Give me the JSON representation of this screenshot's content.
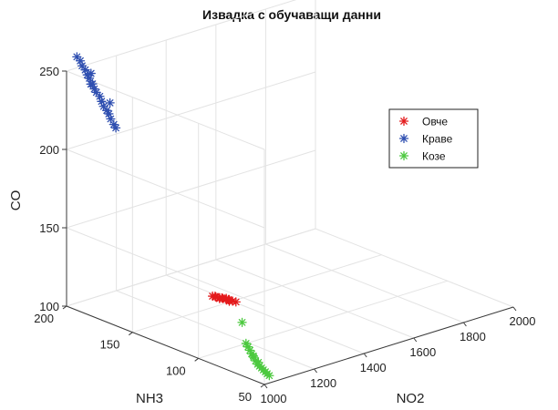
{
  "chart_data": {
    "type": "scatter",
    "projection": "3d",
    "title": "Извадка с обучаващи данни",
    "xlabel": "NO2",
    "ylabel": "NH3",
    "zlabel": "CO",
    "xlim": [
      1000,
      2000
    ],
    "ylim": [
      50,
      200
    ],
    "zlim": [
      100,
      250
    ],
    "xticks": [
      "1000",
      "1200",
      "1400",
      "1600",
      "1800",
      "2000"
    ],
    "yticks": [
      "50",
      "100",
      "150",
      "200"
    ],
    "zticks": [
      "100",
      "150",
      "200",
      "250"
    ],
    "grid": true,
    "legend_position": "inside-right",
    "marker": "asterisk",
    "series": [
      {
        "name": "Овче",
        "color": "#e41a1c",
        "points": [
          {
            "x": 1385,
            "y": 162,
            "z": 100
          },
          {
            "x": 1388,
            "y": 160,
            "z": 100
          },
          {
            "x": 1392,
            "y": 158,
            "z": 100
          },
          {
            "x": 1395,
            "y": 156,
            "z": 100
          },
          {
            "x": 1398,
            "y": 154,
            "z": 100
          },
          {
            "x": 1400,
            "y": 152,
            "z": 100
          },
          {
            "x": 1402,
            "y": 150,
            "z": 100
          },
          {
            "x": 1405,
            "y": 148,
            "z": 100
          },
          {
            "x": 1390,
            "y": 161,
            "z": 100
          },
          {
            "x": 1396,
            "y": 157,
            "z": 100
          },
          {
            "x": 1401,
            "y": 153,
            "z": 100
          },
          {
            "x": 1387,
            "y": 157,
            "z": 100
          },
          {
            "x": 1403,
            "y": 155,
            "z": 100
          },
          {
            "x": 1394,
            "y": 151,
            "z": 100
          }
        ]
      },
      {
        "name": "Краве",
        "color": "#2f4fb0",
        "points": [
          {
            "x": 1015,
            "y": 195,
            "z": 260
          },
          {
            "x": 1018,
            "y": 193,
            "z": 258
          },
          {
            "x": 1020,
            "y": 192,
            "z": 255
          },
          {
            "x": 1022,
            "y": 190,
            "z": 253
          },
          {
            "x": 1025,
            "y": 189,
            "z": 250
          },
          {
            "x": 1028,
            "y": 188,
            "z": 248
          },
          {
            "x": 1030,
            "y": 186,
            "z": 245
          },
          {
            "x": 1032,
            "y": 185,
            "z": 242
          },
          {
            "x": 1035,
            "y": 184,
            "z": 240
          },
          {
            "x": 1038,
            "y": 182,
            "z": 238
          },
          {
            "x": 1040,
            "y": 181,
            "z": 235
          },
          {
            "x": 1043,
            "y": 180,
            "z": 232
          },
          {
            "x": 1045,
            "y": 178,
            "z": 230
          },
          {
            "x": 1048,
            "y": 177,
            "z": 228
          },
          {
            "x": 1050,
            "y": 176,
            "z": 225
          },
          {
            "x": 1052,
            "y": 174,
            "z": 222
          },
          {
            "x": 1055,
            "y": 173,
            "z": 220
          },
          {
            "x": 1024,
            "y": 186,
            "z": 252
          },
          {
            "x": 1034,
            "y": 188,
            "z": 244
          },
          {
            "x": 1042,
            "y": 175,
            "z": 236
          }
        ]
      },
      {
        "name": "Козе",
        "color": "#4cc93f",
        "points": [
          {
            "x": 1085,
            "y": 80,
            "z": 112
          },
          {
            "x": 1088,
            "y": 79,
            "z": 110
          },
          {
            "x": 1090,
            "y": 78,
            "z": 108
          },
          {
            "x": 1092,
            "y": 77,
            "z": 106
          },
          {
            "x": 1095,
            "y": 76,
            "z": 104
          },
          {
            "x": 1097,
            "y": 75,
            "z": 102
          },
          {
            "x": 1100,
            "y": 74,
            "z": 100
          },
          {
            "x": 1102,
            "y": 73,
            "z": 99
          },
          {
            "x": 1105,
            "y": 72,
            "z": 98
          },
          {
            "x": 1107,
            "y": 71,
            "z": 97
          },
          {
            "x": 1110,
            "y": 70,
            "z": 96
          },
          {
            "x": 1112,
            "y": 69,
            "z": 95
          },
          {
            "x": 1115,
            "y": 68,
            "z": 94
          },
          {
            "x": 1093,
            "y": 76,
            "z": 105
          },
          {
            "x": 1103,
            "y": 74,
            "z": 101
          },
          {
            "x": 1080,
            "y": 82,
            "z": 125
          }
        ]
      }
    ]
  }
}
